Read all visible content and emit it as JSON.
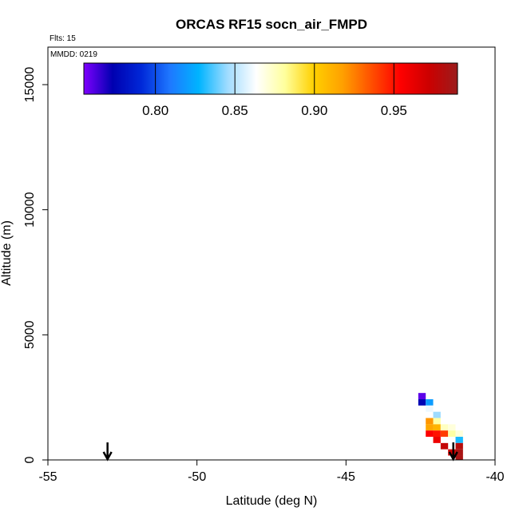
{
  "chart_data": {
    "type": "heatmap",
    "title": "ORCAS RF15 socn_air_FMPD",
    "annotations": {
      "flights": "Flts: 15",
      "mmdd": "MMDD: 0219"
    },
    "xlabel": "Latitude (deg N)",
    "ylabel": "Altitude (m)",
    "xlim": [
      -55,
      -40
    ],
    "ylim": [
      0,
      16500
    ],
    "x_ticks": [
      -55,
      -50,
      -45,
      -40
    ],
    "x_tick_labels": [
      "-55",
      "-50",
      "-45",
      "-40"
    ],
    "y_ticks": [
      0,
      5000,
      10000,
      15000
    ],
    "y_tick_labels": [
      "0",
      "5000",
      "10000",
      "15000"
    ],
    "grid": false,
    "colorbar": {
      "range": [
        0.755,
        0.99
      ],
      "ticks": [
        0.8,
        0.85,
        0.9,
        0.95
      ],
      "tick_labels": [
        "0.80",
        "0.85",
        "0.90",
        "0.95"
      ],
      "colors": [
        "#7f00ff",
        "#0000b0",
        "#0028d8",
        "#1e78ff",
        "#00b4ff",
        "#a0dcff",
        "#ffffff",
        "#ffff9c",
        "#ffd000",
        "#ffa000",
        "#ff5000",
        "#ff0000",
        "#cc0000",
        "#9b1c1c"
      ],
      "placement": "top-inside"
    },
    "cell_size": {
      "lat": 0.25,
      "alt": 250
    },
    "cells": [
      {
        "lat": -42.45,
        "alt": 2550,
        "value": 0.76
      },
      {
        "lat": -42.45,
        "alt": 2300,
        "value": 0.775
      },
      {
        "lat": -42.2,
        "alt": 2300,
        "value": 0.82
      },
      {
        "lat": -42.2,
        "alt": 2050,
        "value": 0.86
      },
      {
        "lat": -41.95,
        "alt": 1800,
        "value": 0.845
      },
      {
        "lat": -42.2,
        "alt": 1550,
        "value": 0.92
      },
      {
        "lat": -41.95,
        "alt": 1550,
        "value": 0.88
      },
      {
        "lat": -42.2,
        "alt": 1300,
        "value": 0.915
      },
      {
        "lat": -41.95,
        "alt": 1300,
        "value": 0.91
      },
      {
        "lat": -41.7,
        "alt": 1300,
        "value": 0.875
      },
      {
        "lat": -41.45,
        "alt": 1300,
        "value": 0.87
      },
      {
        "lat": -42.2,
        "alt": 1050,
        "value": 0.955
      },
      {
        "lat": -41.95,
        "alt": 1050,
        "value": 0.95
      },
      {
        "lat": -41.7,
        "alt": 1050,
        "value": 0.94
      },
      {
        "lat": -41.45,
        "alt": 1050,
        "value": 0.88
      },
      {
        "lat": -41.2,
        "alt": 1050,
        "value": 0.87
      },
      {
        "lat": -41.95,
        "alt": 800,
        "value": 0.96
      },
      {
        "lat": -41.2,
        "alt": 800,
        "value": 0.83
      },
      {
        "lat": -41.7,
        "alt": 550,
        "value": 0.975
      },
      {
        "lat": -41.2,
        "alt": 550,
        "value": 0.98
      },
      {
        "lat": -41.2,
        "alt": 300,
        "value": 0.985
      },
      {
        "lat": -41.45,
        "alt": 300,
        "value": 0.97
      },
      {
        "lat": -41.2,
        "alt": 50,
        "value": 0.985
      }
    ],
    "markers": [
      {
        "lat": -53.0,
        "alt_top": 700,
        "alt_bottom": 0
      },
      {
        "lat": -41.4,
        "alt_top": 700,
        "alt_bottom": 0
      }
    ]
  }
}
